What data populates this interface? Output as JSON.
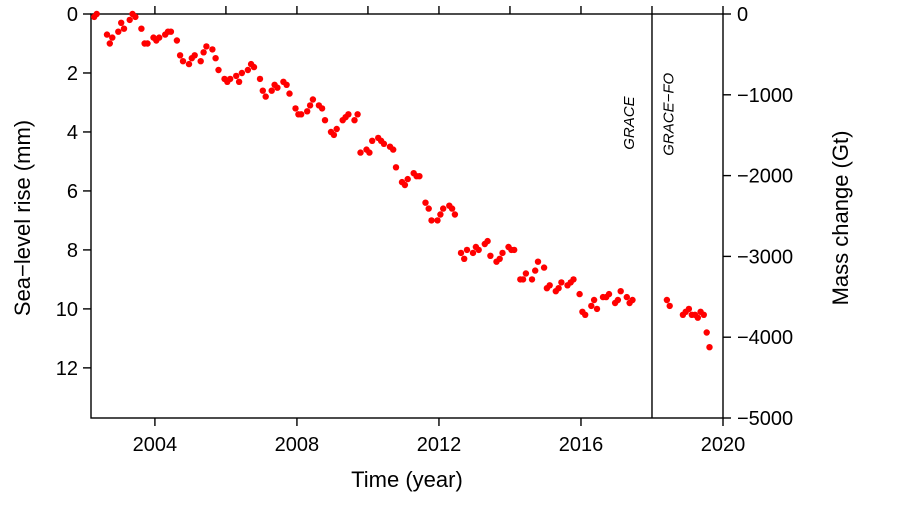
{
  "chart_data": {
    "type": "scatter",
    "xlabel": "Time (year)",
    "ylabel_left": "Sea−level rise (mm)",
    "ylabel_right": "Mass change (Gt)",
    "xlim": [
      2002.2,
      2020.0
    ],
    "ylim_left": [
      0,
      13.7
    ],
    "ylim_left_inverted": true,
    "ylim_right": [
      -5000,
      0
    ],
    "x_ticks": [
      2004,
      2008,
      2012,
      2016,
      2020
    ],
    "x_tick_labels": [
      "2004",
      "2008",
      "2012",
      "2016",
      "2020"
    ],
    "y_left_ticks": [
      0,
      2,
      4,
      6,
      8,
      10,
      12
    ],
    "y_left_tick_labels": [
      "0",
      "2",
      "4",
      "6",
      "8",
      "10",
      "12"
    ],
    "y_right_ticks": [
      0,
      -1000,
      -2000,
      -3000,
      -4000,
      -5000
    ],
    "y_right_tick_labels": [
      "0",
      "−1000",
      "−2000",
      "−3000",
      "−4000",
      "−5000"
    ],
    "divider_x": 2018.0,
    "missions": [
      {
        "label": "GRACE",
        "x": 2017.5,
        "y": 3.7
      },
      {
        "label": "GRACE−FO",
        "x": 2018.6,
        "y": 3.4
      }
    ],
    "marker_color": "#ff0000",
    "series": [
      {
        "name": "GRACE",
        "x": [
          2002.29,
          2002.36,
          2002.65,
          2002.73,
          2002.8,
          2002.97,
          2003.05,
          2003.13,
          2003.29,
          2003.37,
          2003.45,
          2003.62,
          2003.71,
          2003.79,
          2003.96,
          2004.04,
          2004.12,
          2004.29,
          2004.37,
          2004.45,
          2004.62,
          2004.71,
          2004.79,
          2004.96,
          2005.04,
          2005.12,
          2005.29,
          2005.37,
          2005.45,
          2005.62,
          2005.71,
          2005.79,
          2005.96,
          2006.04,
          2006.12,
          2006.29,
          2006.37,
          2006.45,
          2006.62,
          2006.71,
          2006.79,
          2006.96,
          2007.04,
          2007.12,
          2007.29,
          2007.37,
          2007.45,
          2007.62,
          2007.71,
          2007.79,
          2007.96,
          2008.04,
          2008.12,
          2008.29,
          2008.37,
          2008.45,
          2008.62,
          2008.71,
          2008.79,
          2008.96,
          2009.04,
          2009.12,
          2009.29,
          2009.37,
          2009.45,
          2009.62,
          2009.71,
          2009.79,
          2009.96,
          2010.04,
          2010.12,
          2010.29,
          2010.37,
          2010.45,
          2010.62,
          2010.71,
          2010.79,
          2010.96,
          2011.04,
          2011.12,
          2011.29,
          2011.37,
          2011.45,
          2011.62,
          2011.71,
          2011.79,
          2011.96,
          2012.04,
          2012.12,
          2012.29,
          2012.37,
          2012.45,
          2012.62,
          2012.71,
          2012.79,
          2012.96,
          2013.04,
          2013.12,
          2013.29,
          2013.37,
          2013.45,
          2013.62,
          2013.71,
          2013.79,
          2013.96,
          2014.04,
          2014.12,
          2014.29,
          2014.37,
          2014.45,
          2014.62,
          2014.71,
          2014.79,
          2014.96,
          2015.04,
          2015.12,
          2015.29,
          2015.37,
          2015.45,
          2015.62,
          2015.71,
          2015.79,
          2015.96,
          2016.04,
          2016.12,
          2016.29,
          2016.37,
          2016.45,
          2016.62,
          2016.71,
          2016.79,
          2016.96,
          2017.04,
          2017.12,
          2017.29,
          2017.37,
          2017.45
        ],
        "y": [
          0.1,
          0.0,
          0.7,
          1.0,
          0.8,
          0.6,
          0.3,
          0.5,
          0.2,
          0.0,
          0.1,
          0.5,
          1.0,
          1.0,
          0.8,
          0.9,
          0.8,
          0.7,
          0.6,
          0.6,
          0.9,
          1.4,
          1.6,
          1.7,
          1.5,
          1.4,
          1.6,
          1.3,
          1.1,
          1.2,
          1.5,
          1.9,
          2.2,
          2.3,
          2.2,
          2.1,
          2.3,
          2.0,
          1.9,
          1.7,
          1.8,
          2.2,
          2.6,
          2.8,
          2.6,
          2.4,
          2.5,
          2.3,
          2.4,
          2.7,
          3.2,
          3.4,
          3.4,
          3.3,
          3.1,
          2.9,
          3.1,
          3.2,
          3.6,
          4.0,
          4.1,
          3.9,
          3.6,
          3.5,
          3.4,
          3.6,
          3.4,
          4.7,
          4.6,
          4.7,
          4.3,
          4.2,
          4.3,
          4.4,
          4.5,
          4.6,
          5.2,
          5.7,
          5.8,
          5.6,
          5.4,
          5.5,
          5.5,
          6.4,
          6.6,
          7.0,
          7.0,
          6.8,
          6.6,
          6.5,
          6.6,
          6.8,
          8.1,
          8.3,
          8.0,
          8.1,
          7.9,
          8.0,
          7.8,
          7.7,
          8.2,
          8.4,
          8.3,
          8.1,
          7.9,
          8.0,
          8.0,
          9.0,
          9.0,
          8.8,
          9.0,
          8.7,
          8.4,
          8.6,
          9.3,
          9.2,
          9.4,
          9.3,
          9.1,
          9.2,
          9.1,
          9.0,
          9.5,
          10.1,
          10.2,
          9.9,
          9.7,
          10.0,
          9.6,
          9.6,
          9.5,
          9.8,
          9.7,
          9.4,
          9.6,
          9.8,
          9.7
        ]
      },
      {
        "name": "GRACE−FO",
        "x": [
          2018.42,
          2018.5,
          2018.87,
          2018.95,
          2019.04,
          2019.12,
          2019.21,
          2019.29,
          2019.37,
          2019.46,
          2019.54,
          2019.62
        ],
        "y": [
          9.7,
          9.9,
          10.2,
          10.1,
          10.0,
          10.2,
          10.2,
          10.3,
          10.1,
          10.2,
          10.8,
          11.3
        ]
      }
    ]
  }
}
